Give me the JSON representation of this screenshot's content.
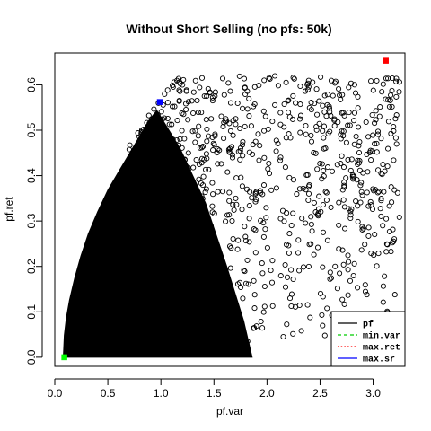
{
  "chart_data": {
    "type": "scatter",
    "title": "Without Short Selling (no pfs: 50k)",
    "xlabel": "pf.var",
    "ylabel": "pf.ret",
    "xlim": [
      0,
      3.3
    ],
    "ylim": [
      -0.02,
      0.67
    ],
    "x_ticks": [
      "0.0",
      "0.5",
      "1.0",
      "1.5",
      "2.0",
      "2.5",
      "3.0"
    ],
    "y_ticks": [
      "0.0",
      "0.1",
      "0.2",
      "0.3",
      "0.4",
      "0.5",
      "0.6"
    ],
    "series": [
      {
        "name": "pf",
        "marker": "open-circle",
        "color": "#000000",
        "approx_point_count": 50000,
        "frontier_edge": {
          "x": [
            0.09,
            0.1,
            0.12,
            0.15,
            0.2,
            0.26,
            0.33,
            0.42,
            0.52,
            0.62,
            0.72,
            0.82,
            0.92,
            0.99
          ],
          "y": [
            0.0,
            0.05,
            0.09,
            0.13,
            0.18,
            0.23,
            0.28,
            0.33,
            0.38,
            0.42,
            0.46,
            0.5,
            0.54,
            0.56
          ]
        }
      },
      {
        "name": "min.var",
        "marker": "filled-square",
        "color": "#00ff00",
        "x": [
          0.09
        ],
        "y": [
          0.0
        ]
      },
      {
        "name": "max.ret",
        "marker": "filled-square",
        "color": "#ff0000",
        "x": [
          3.12
        ],
        "y": [
          0.653
        ]
      },
      {
        "name": "max.sr",
        "marker": "filled-square",
        "color": "#0000ff",
        "x": [
          0.99
        ],
        "y": [
          0.562
        ]
      }
    ],
    "legend": {
      "placement": "bottom-right",
      "entries": [
        {
          "label": "pf",
          "color": "#000000",
          "line": "solid"
        },
        {
          "label": "min.var",
          "color": "#00cc00",
          "line": "dashed"
        },
        {
          "label": "max.ret",
          "color": "#ff0000",
          "line": "dotted"
        },
        {
          "label": "max.sr",
          "color": "#0000ff",
          "line": "solid"
        }
      ]
    },
    "grid": false
  }
}
